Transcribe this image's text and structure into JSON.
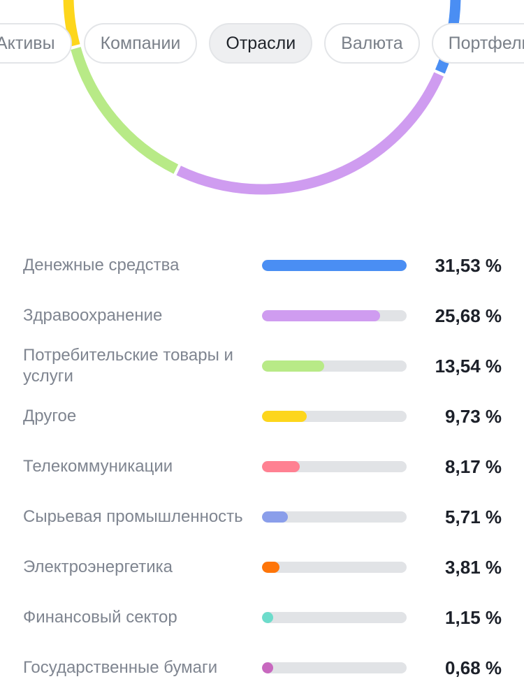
{
  "tabs": [
    {
      "label": "Активы",
      "active": false
    },
    {
      "label": "Компании",
      "active": false
    },
    {
      "label": "Отрасли",
      "active": true
    },
    {
      "label": "Валюта",
      "active": false
    },
    {
      "label": "Портфель",
      "active": false
    }
  ],
  "sectors": [
    {
      "label": "Денежные средства",
      "value_text": "31,53 %",
      "percent": 31.53,
      "color": "#4a8ef3"
    },
    {
      "label": "Здравоохранение",
      "value_text": "25,68 %",
      "percent": 25.68,
      "color": "#cf9cf0"
    },
    {
      "label": "Потребительские товары и услуги",
      "value_text": "13,54 %",
      "percent": 13.54,
      "color": "#b8ea87"
    },
    {
      "label": "Другое",
      "value_text": "9,73 %",
      "percent": 9.73,
      "color": "#fdd61c"
    },
    {
      "label": "Телекоммуникации",
      "value_text": "8,17 %",
      "percent": 8.17,
      "color": "#ff8192"
    },
    {
      "label": "Сырьевая промышленность",
      "value_text": "5,71 %",
      "percent": 5.71,
      "color": "#8a9eea"
    },
    {
      "label": "Электроэнергетика",
      "value_text": "3,81 %",
      "percent": 3.81,
      "color": "#fe7509"
    },
    {
      "label": "Финансовый сектор",
      "value_text": "1,15 %",
      "percent": 1.15,
      "color": "#6ddccb"
    },
    {
      "label": "Государственные бумаги",
      "value_text": "0,68 %",
      "percent": 0.68,
      "color": "#c868bf"
    }
  ]
}
